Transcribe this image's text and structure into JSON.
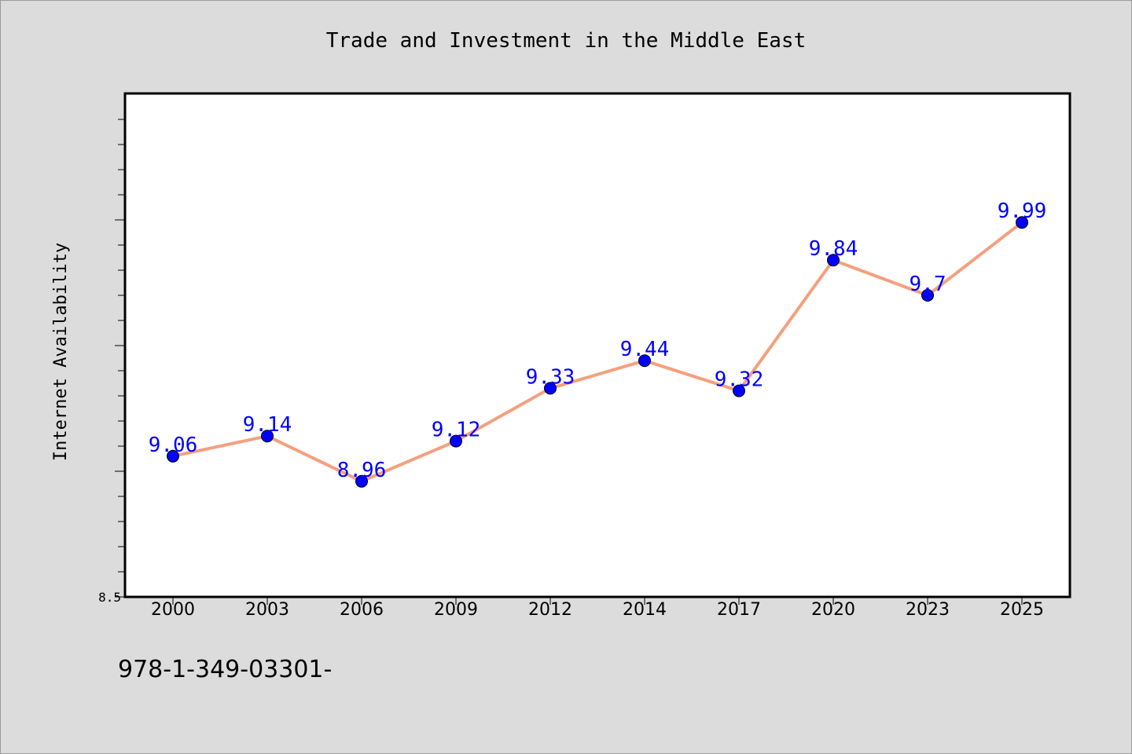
{
  "chart_data": {
    "type": "line",
    "title": "Trade and Investment in the Middle East",
    "xlabel": "",
    "ylabel": "Internet Availability",
    "categories": [
      "2000",
      "2003",
      "2006",
      "2009",
      "2012",
      "2014",
      "2017",
      "2020",
      "2023",
      "2025"
    ],
    "series": [
      {
        "values": [
          9.06,
          9.14,
          8.96,
          9.12,
          9.33,
          9.44,
          9.32,
          9.84,
          9.7,
          9.99
        ],
        "labels": [
          "9.06",
          "9.14",
          "8.96",
          "9.12",
          "9.33",
          "9.44",
          "9.32",
          "9.84",
          "9.7",
          "9.99"
        ]
      }
    ],
    "ylim": [
      8.5,
      10.5
    ],
    "y_tick_labels": [
      "8.5"
    ],
    "grid": false,
    "legend": "none",
    "colors": {
      "line": "#f4a07f",
      "marker": "#0000ff",
      "label": "#0000ff",
      "background": "#dcdcdc",
      "plot_background": "#ffffff"
    }
  },
  "footer_text": "978-1-349-03301-"
}
